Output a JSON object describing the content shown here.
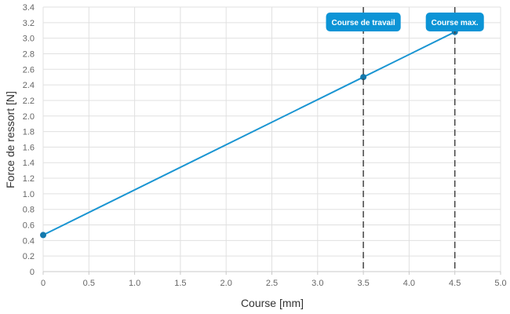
{
  "chart_data": {
    "type": "line",
    "xlabel": "Course [mm]",
    "ylabel": "Force de ressort [N]",
    "xlim": [
      0,
      5.0
    ],
    "ylim": [
      0,
      3.4
    ],
    "x_ticks": [
      "0",
      "0.5",
      "1.0",
      "1.5",
      "2.0",
      "2.5",
      "3.0",
      "3.5",
      "4.0",
      "4.5",
      "5.0"
    ],
    "y_ticks": [
      "0",
      "0.2",
      "0.4",
      "0.6",
      "0.8",
      "1.0",
      "1.2",
      "1.4",
      "1.6",
      "1.8",
      "2.0",
      "2.2",
      "2.4",
      "2.6",
      "2.8",
      "3.0",
      "3.2",
      "3.4"
    ],
    "grid": true,
    "series": [
      {
        "points": [
          {
            "x": 0,
            "y": 0.47
          },
          {
            "x": 3.5,
            "y": 2.5
          },
          {
            "x": 4.5,
            "y": 3.08
          }
        ]
      }
    ],
    "markers": [
      {
        "x": 3.5,
        "label": "Course de travail"
      },
      {
        "x": 4.5,
        "label": "Course max."
      }
    ],
    "colors": {
      "line": "#1a95d2",
      "point": "#1479ad",
      "marker_line": "#444444",
      "label_bg": "#0c94d6",
      "grid": "#e0e0e0"
    }
  }
}
